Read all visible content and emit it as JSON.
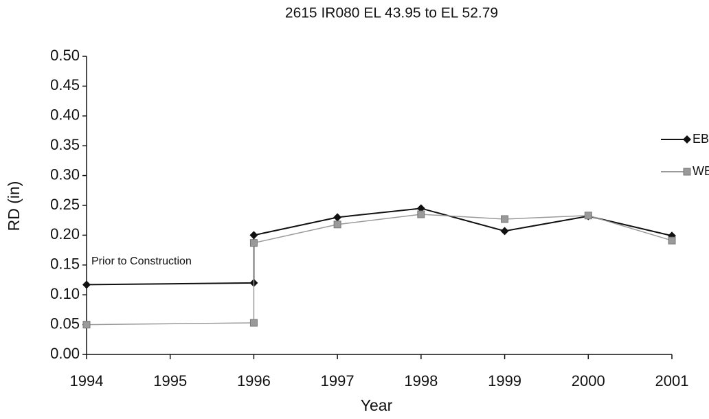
{
  "chart_data": {
    "type": "line",
    "title": "2615 IR080 EL 43.95 to EL 52.79",
    "x_label": "Year",
    "y_label": "RD (in)",
    "annotation": "Prior to Construction",
    "x": [
      1994,
      1996,
      1996,
      1997,
      1998,
      1999,
      2000,
      2001
    ],
    "series": [
      {
        "name": "EB",
        "color": "#111111",
        "marker": "diamond",
        "values": [
          0.117,
          0.12,
          0.2,
          0.23,
          0.245,
          0.207,
          0.232,
          0.199
        ]
      },
      {
        "name": "WB",
        "color": "#9a9a9a",
        "marker": "square",
        "values": [
          0.05,
          0.053,
          0.187,
          0.218,
          0.235,
          0.227,
          0.233,
          0.191
        ]
      }
    ],
    "xlim": [
      1994,
      2001
    ],
    "xticks": [
      1994,
      1995,
      1996,
      1997,
      1998,
      1999,
      2000,
      2001
    ],
    "ylim": [
      0,
      0.5
    ],
    "yticks": [
      {
        "value": 0,
        "label": "0.00"
      },
      0.05,
      {
        "value": 0.1,
        "label": "0.10"
      },
      0.15,
      {
        "value": 0.2,
        "label": "0.20"
      },
      0.25,
      {
        "value": 0.3,
        "label": "0.30"
      },
      0.35,
      {
        "value": 0.4,
        "label": "0.40"
      },
      0.45,
      {
        "value": 0.5,
        "label": "0.50"
      }
    ],
    "grid": false,
    "legend": "right"
  }
}
